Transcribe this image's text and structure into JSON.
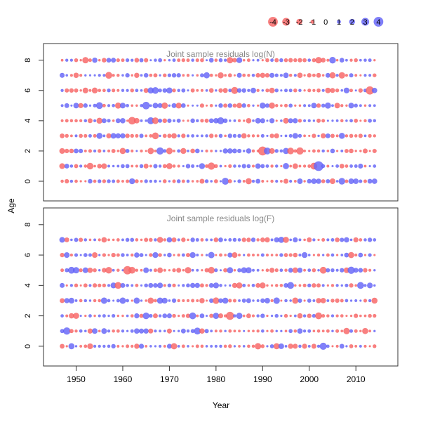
{
  "chart_data": {
    "type": "scatter",
    "subtype": "bubble-residuals",
    "xlabel": "Year",
    "ylabel": "Age",
    "x_ticks": [
      1950,
      1960,
      1970,
      1980,
      1990,
      2000,
      2010
    ],
    "y_ticks": [
      0,
      2,
      4,
      6,
      8
    ],
    "xlim": [
      1943,
      2019
    ],
    "years": {
      "start": 1947,
      "end": 2014
    },
    "colors": {
      "positive": "#6a6af8",
      "negative": "#f86a6a",
      "frame": "#333333",
      "title": "#888888"
    },
    "legend": {
      "position": "top-right",
      "values": [
        -4,
        -3,
        -2,
        -1,
        0,
        1,
        2,
        3,
        4
      ],
      "labels": [
        "-4",
        "-3",
        "-2",
        "-1",
        "0",
        "1",
        "2",
        "3",
        "4"
      ]
    },
    "panels": [
      {
        "title": "Joint sample residuals log(N)",
        "ages": [
          0,
          1,
          2,
          3,
          4,
          5,
          6,
          7,
          8
        ],
        "ylim": [
          -1.3,
          9.1
        ],
        "seed": 11,
        "note": "residual per (year, age); sign gives colour, magnitude gives size"
      },
      {
        "title": "Joint sample residuals log(F)",
        "ages": [
          0,
          1,
          2,
          3,
          4,
          5,
          6,
          7
        ],
        "ylim": [
          -1.3,
          9.1
        ],
        "seed": 29,
        "note": "residual per (year, age); sign gives colour, magnitude gives size"
      }
    ]
  }
}
